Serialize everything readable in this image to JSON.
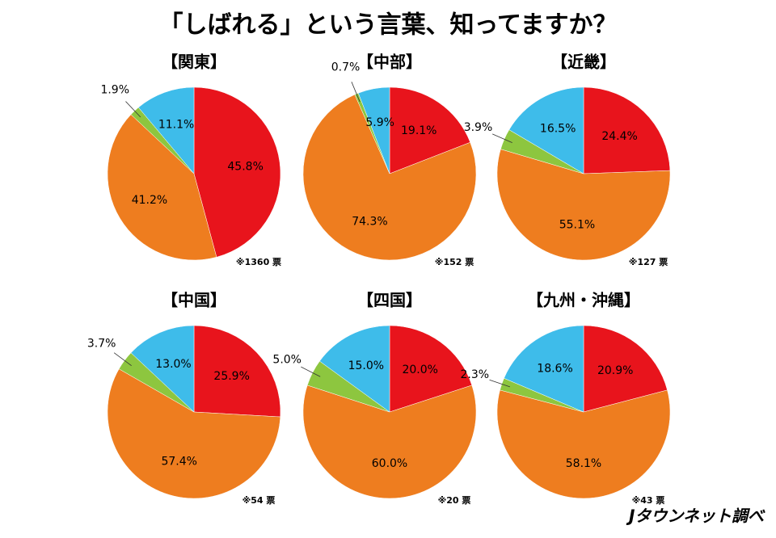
{
  "title": "「しばれる」という言葉、知ってますか？",
  "source": "Jタウンネット調べ",
  "chart_data": [
    {
      "type": "pie",
      "title": "【関東】",
      "values": [
        45.8,
        41.2,
        1.9,
        11.1
      ],
      "value_labels": [
        "45.8%",
        "41.2%",
        "1.9%",
        "11.1%"
      ],
      "colors": [
        "#e8141c",
        "#ee7d1f",
        "#8dc63f",
        "#3ebcea"
      ],
      "note": "※1360 票"
    },
    {
      "type": "pie",
      "title": "【中部】",
      "values": [
        19.1,
        74.3,
        0.7,
        5.9
      ],
      "value_labels": [
        "19.1%",
        "74.3%",
        "0.7%",
        "5.9%"
      ],
      "colors": [
        "#e8141c",
        "#ee7d1f",
        "#8dc63f",
        "#3ebcea"
      ],
      "note": "※152 票"
    },
    {
      "type": "pie",
      "title": "【近畿】",
      "values": [
        24.4,
        55.1,
        3.9,
        16.5
      ],
      "value_labels": [
        "24.4%",
        "55.1%",
        "3.9%",
        "16.5%"
      ],
      "colors": [
        "#e8141c",
        "#ee7d1f",
        "#8dc63f",
        "#3ebcea"
      ],
      "note": "※127 票"
    },
    {
      "type": "pie",
      "title": "【中国】",
      "values": [
        25.9,
        57.4,
        3.7,
        13.0
      ],
      "value_labels": [
        "25.9%",
        "57.4%",
        "3.7%",
        "13.0%"
      ],
      "colors": [
        "#e8141c",
        "#ee7d1f",
        "#8dc63f",
        "#3ebcea"
      ],
      "note": "※54 票"
    },
    {
      "type": "pie",
      "title": "【四国】",
      "values": [
        20.0,
        60.0,
        5.0,
        15.0
      ],
      "value_labels": [
        "20.0%",
        "60.0%",
        "5.0%",
        "15.0%"
      ],
      "colors": [
        "#e8141c",
        "#ee7d1f",
        "#8dc63f",
        "#3ebcea"
      ],
      "note": "※20 票"
    },
    {
      "type": "pie",
      "title": "【九州・沖縄】",
      "values": [
        20.9,
        58.1,
        2.3,
        18.6
      ],
      "value_labels": [
        "20.9%",
        "58.1%",
        "2.3%",
        "18.6%"
      ],
      "colors": [
        "#e8141c",
        "#ee7d1f",
        "#8dc63f",
        "#3ebcea"
      ],
      "note": "※43 票"
    }
  ]
}
